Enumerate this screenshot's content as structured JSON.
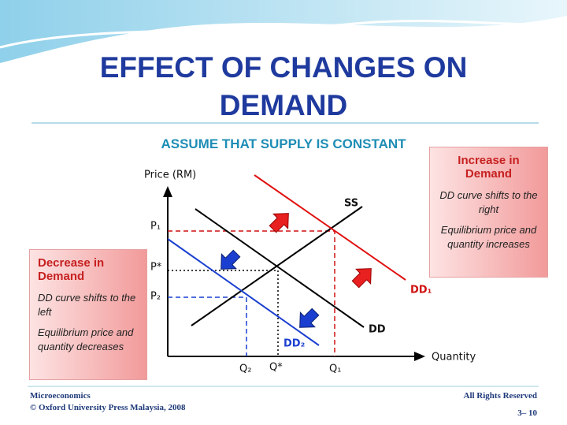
{
  "header": {
    "title": "EFFECT OF CHANGES ON DEMAND",
    "subtitle": "ASSUME THAT SUPPLY IS CONSTANT"
  },
  "graph": {
    "y_axis_label": "Price (RM)",
    "x_axis_label": "Quantity",
    "curves": {
      "supply": "SS",
      "demand": "DD",
      "demand_increase": "DD₁",
      "demand_decrease": "DD₂"
    },
    "price_labels": {
      "p1": "P₁",
      "p_star": "P*",
      "p2": "P₂"
    },
    "quantity_labels": {
      "q2": "Q₂",
      "q_star": "Q*",
      "q1": "Q₁"
    }
  },
  "boxes": {
    "increase": {
      "heading": "Increase in Demand",
      "lines": [
        "DD curve shifts to the right",
        "Equilibrium price and quantity increases"
      ]
    },
    "decrease": {
      "heading": "Decrease in Demand",
      "lines": [
        "DD curve shifts to the left",
        "Equilibrium price and quantity decreases"
      ]
    }
  },
  "footer": {
    "course": "Microeconomics",
    "publisher": "© Oxford University Press Malaysia, 2008",
    "rights": "All Rights Reserved",
    "page": "3– 10"
  }
}
